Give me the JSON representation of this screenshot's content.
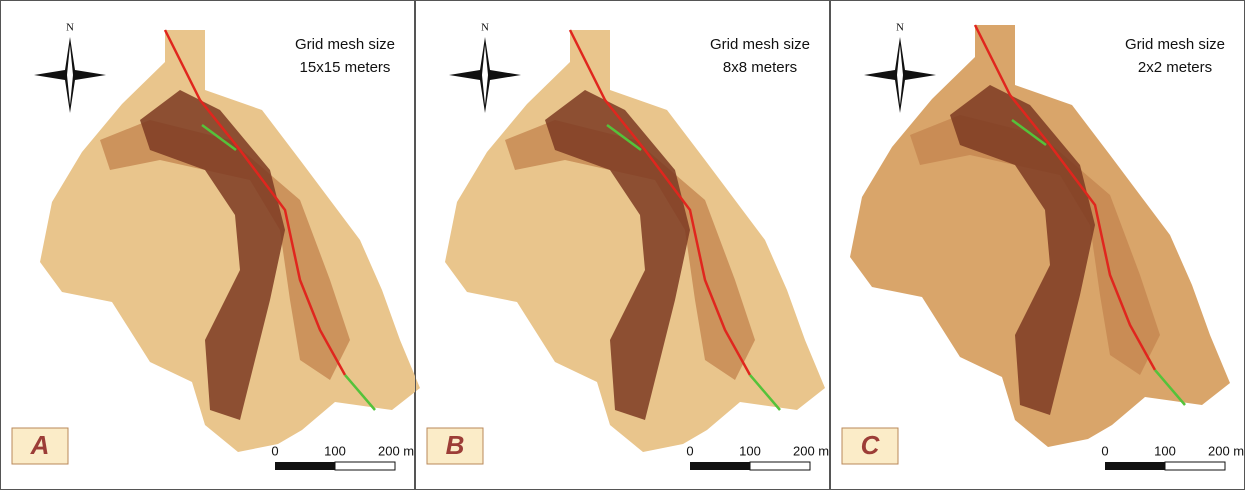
{
  "panels": [
    {
      "label": "A",
      "title": "Grid mesh size",
      "resolution": "15x15 meters",
      "north": "N",
      "scale": [
        "0",
        "100",
        "200 m"
      ]
    },
    {
      "label": "B",
      "title": "Grid mesh size",
      "resolution": "8x8 meters",
      "north": "N",
      "scale": [
        "0",
        "100",
        "200 m"
      ]
    },
    {
      "label": "C",
      "title": "Grid mesh size",
      "resolution": "2x2 meters",
      "north": "N",
      "scale": [
        "0",
        "100",
        "200 m"
      ]
    }
  ]
}
